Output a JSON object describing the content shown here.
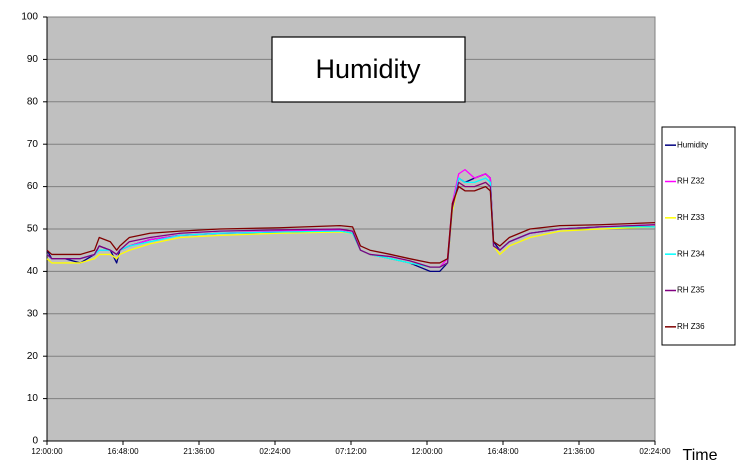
{
  "chart_data": {
    "type": "line",
    "title": "Humidity",
    "x_label": "Time",
    "x": [
      0,
      0.3,
      1.1,
      2.1,
      3.0,
      3.3,
      4.0,
      4.4,
      4.6,
      5.2,
      6.5,
      8.4,
      10.9,
      14.7,
      18.5,
      19.3,
      19.8,
      20.4,
      21.7,
      22.9,
      24.2,
      24.8,
      25.3,
      25.6,
      26.0,
      26.4,
      27.0,
      27.7,
      28.0,
      28.2,
      28.6,
      29.2,
      30.5,
      32.4,
      34.9,
      38.4
    ],
    "series": [
      {
        "name": "Humidity",
        "color": "#000080",
        "values": [
          45,
          43,
          43,
          42,
          44,
          46,
          45,
          42,
          45,
          46,
          47.5,
          48.5,
          49,
          49.3,
          49.5,
          49,
          45,
          44,
          43,
          42,
          40,
          40,
          42,
          55,
          62,
          61,
          62,
          63,
          62,
          47,
          45,
          47,
          49,
          50,
          50.5,
          50.5
        ]
      },
      {
        "name": "RH Z32",
        "color": "#ff00ff",
        "values": [
          44,
          43,
          43,
          43,
          44,
          45,
          45,
          44,
          45,
          46,
          47.5,
          48.5,
          49,
          49.5,
          49.8,
          49.5,
          45,
          44,
          43,
          42,
          41,
          41,
          43,
          56,
          63,
          64,
          62,
          63,
          62,
          46,
          45,
          47,
          49,
          50,
          50.5,
          51
        ]
      },
      {
        "name": "RH Z33",
        "color": "#ffff00",
        "values": [
          43,
          42,
          42,
          42,
          43,
          44,
          44,
          43,
          44,
          45,
          46.5,
          48,
          48.5,
          49,
          49.3,
          49,
          45,
          44,
          43,
          42,
          41,
          41,
          42,
          54,
          61,
          60,
          60,
          61,
          60,
          46,
          44,
          46,
          48,
          49.5,
          50,
          50.5
        ]
      },
      {
        "name": "RH Z34",
        "color": "#00ffff",
        "values": [
          44,
          43,
          43,
          43,
          44,
          45,
          45,
          44,
          45,
          46,
          47,
          48.5,
          49,
          49.3,
          49.5,
          49,
          45,
          44,
          43,
          42,
          41,
          41,
          42,
          55,
          62,
          61,
          61,
          62,
          61,
          46,
          45,
          47,
          49,
          50,
          50.5,
          50.5
        ]
      },
      {
        "name": "RH Z35",
        "color": "#800080",
        "values": [
          44,
          43,
          43,
          43,
          44,
          46,
          45,
          44,
          45,
          47,
          48,
          49,
          49.5,
          49.8,
          50,
          49.5,
          45,
          44,
          43.5,
          42.5,
          41,
          41,
          42,
          55,
          61,
          60,
          60,
          61,
          60,
          46,
          45,
          47,
          49,
          50,
          50.5,
          51
        ]
      },
      {
        "name": "RH Z36",
        "color": "#800000",
        "values": [
          45,
          44,
          44,
          44,
          45,
          48,
          47,
          45,
          46,
          48,
          49,
          49.5,
          50,
          50.3,
          50.8,
          50.5,
          46,
          45,
          44,
          43,
          42,
          42,
          43,
          56,
          60,
          59,
          59,
          60,
          59,
          47,
          46,
          48,
          50,
          50.8,
          51,
          51.5
        ]
      }
    ],
    "xlim": [
      0,
      38.4
    ],
    "xticks": [
      {
        "value": 0,
        "label": "12:00:00"
      },
      {
        "value": 4.8,
        "label": "16:48:00"
      },
      {
        "value": 9.6,
        "label": "21:36:00"
      },
      {
        "value": 14.4,
        "label": "02:24:00"
      },
      {
        "value": 19.2,
        "label": "07:12:00"
      },
      {
        "value": 24,
        "label": "12:00:00"
      },
      {
        "value": 28.8,
        "label": "16:48:00"
      },
      {
        "value": 33.6,
        "label": "21:36:00"
      },
      {
        "value": 38.4,
        "label": "02:24:00"
      }
    ],
    "ylim": [
      0,
      100
    ],
    "yticks": [
      0,
      10,
      20,
      30,
      40,
      50,
      60,
      70,
      80,
      90,
      100
    ],
    "grid": true,
    "legend_position": "right",
    "plot_background": "#c0c0c0"
  }
}
